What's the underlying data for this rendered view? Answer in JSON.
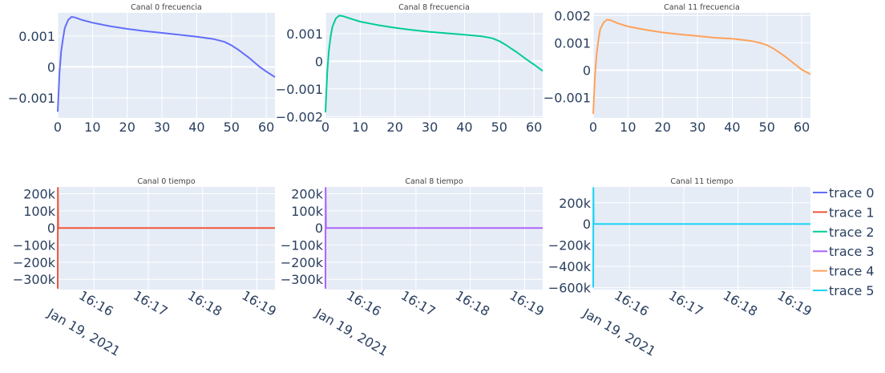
{
  "colors": {
    "plot_bg": "#e5ecf6",
    "grid": "#ffffff",
    "text": "#2a3f5f"
  },
  "chart_data": [
    {
      "type": "line",
      "title": "Canal 0 frecuencia",
      "xlim": [
        0,
        62.5
      ],
      "ylim": [
        -0.00165,
        0.00175
      ],
      "x_ticks": [
        0,
        10,
        20,
        30,
        40,
        50,
        60
      ],
      "x_tick_labels": [
        "0",
        "10",
        "20",
        "30",
        "40",
        "50",
        "60"
      ],
      "y_ticks": [
        0.001,
        0,
        -0.001
      ],
      "y_tick_labels": [
        "0.001",
        "0",
        "−0.001"
      ],
      "series": [
        {
          "color": "#636efa",
          "x": [
            0,
            0.5,
            1,
            1.5,
            2,
            3,
            4,
            5,
            7,
            10,
            15,
            20,
            25,
            30,
            35,
            40,
            45,
            48,
            50,
            52,
            55,
            58,
            60,
            62.5
          ],
          "y": [
            -0.00145,
            -0.0002,
            0.0005,
            0.0009,
            0.00125,
            0.00152,
            0.00162,
            0.0016,
            0.00152,
            0.00143,
            0.00132,
            0.00123,
            0.00116,
            0.0011,
            0.00104,
            0.00098,
            0.0009,
            0.00081,
            0.0007,
            0.00055,
            0.0003,
            1e-05,
            -0.00015,
            -0.00033
          ]
        }
      ]
    },
    {
      "type": "line",
      "title": "Canal 8 frecuencia",
      "xlim": [
        0,
        62.5
      ],
      "ylim": [
        -0.00205,
        0.00175
      ],
      "x_ticks": [
        0,
        10,
        20,
        30,
        40,
        50,
        60
      ],
      "x_tick_labels": [
        "0",
        "10",
        "20",
        "30",
        "40",
        "50",
        "60"
      ],
      "y_ticks": [
        0.001,
        0,
        -0.001,
        -0.002
      ],
      "y_tick_labels": [
        "0.001",
        "0",
        "−0.001",
        "−0.002"
      ],
      "series": [
        {
          "color": "#00cc96",
          "x": [
            0,
            0.5,
            1,
            1.5,
            2,
            3,
            4,
            5,
            7,
            10,
            15,
            20,
            25,
            30,
            35,
            40,
            45,
            48,
            50,
            52,
            55,
            58,
            60,
            62.5
          ],
          "y": [
            -0.00185,
            -0.0004,
            0.0004,
            0.0009,
            0.00125,
            0.00155,
            0.00165,
            0.00163,
            0.00155,
            0.00143,
            0.00131,
            0.00121,
            0.00113,
            0.00106,
            0.00101,
            0.00096,
            0.0009,
            0.00083,
            0.00073,
            0.00058,
            0.00033,
            5e-05,
            -0.00012,
            -0.00035
          ]
        }
      ]
    },
    {
      "type": "line",
      "title": "Canal 11 frecuencia",
      "xlim": [
        0,
        62.5
      ],
      "ylim": [
        -0.00175,
        0.0021
      ],
      "x_ticks": [
        0,
        10,
        20,
        30,
        40,
        50,
        60
      ],
      "x_tick_labels": [
        "0",
        "10",
        "20",
        "30",
        "40",
        "50",
        "60"
      ],
      "y_ticks": [
        0.002,
        0.001,
        0,
        -0.001
      ],
      "y_tick_labels": [
        "0.002",
        "0.001",
        "0",
        "−0.001"
      ],
      "series": [
        {
          "color": "#ffa15a",
          "x": [
            0,
            0.5,
            1,
            1.5,
            2,
            3,
            4,
            5,
            7,
            10,
            15,
            20,
            25,
            30,
            35,
            40,
            45,
            48,
            50,
            52,
            55,
            58,
            60,
            62.5
          ],
          "y": [
            -0.0016,
            -0.0002,
            0.0006,
            0.0011,
            0.0015,
            0.00175,
            0.00185,
            0.00183,
            0.00172,
            0.0016,
            0.00148,
            0.00138,
            0.00131,
            0.00125,
            0.00119,
            0.00115,
            0.00108,
            0.001,
            0.00092,
            0.00078,
            0.00052,
            0.00022,
            2e-05,
            -0.00015
          ]
        }
      ]
    },
    {
      "type": "line",
      "title": "Canal 0 tiempo",
      "xlim": [
        0,
        240
      ],
      "ylim": [
        -360000,
        240000
      ],
      "x_ticks": [
        40,
        100,
        160,
        220
      ],
      "x_tick_labels": [
        "16:16",
        "16:17",
        "16:18",
        "16:19"
      ],
      "x_date_label": "Jan 19, 2021",
      "y_ticks": [
        200000,
        100000,
        0,
        -100000,
        -200000,
        -300000
      ],
      "y_tick_labels": [
        "200k",
        "100k",
        "0",
        "−100k",
        "−200k",
        "−300k"
      ],
      "series": [
        {
          "color": "#ef553b",
          "x": [
            0,
            0.2,
            0.5,
            2,
            60,
            120,
            180,
            240
          ],
          "y": [
            -355000,
            235000,
            0,
            0,
            0,
            0,
            0,
            0
          ]
        }
      ]
    },
    {
      "type": "line",
      "title": "Canal 8 tiempo",
      "xlim": [
        0,
        240
      ],
      "ylim": [
        -360000,
        240000
      ],
      "x_ticks": [
        40,
        100,
        160,
        220
      ],
      "x_tick_labels": [
        "16:16",
        "16:17",
        "16:18",
        "16:19"
      ],
      "x_date_label": "Jan 19, 2021",
      "y_ticks": [
        200000,
        100000,
        0,
        -100000,
        -200000,
        -300000
      ],
      "y_tick_labels": [
        "200k",
        "100k",
        "0",
        "−100k",
        "−200k",
        "−300k"
      ],
      "series": [
        {
          "color": "#ab63fa",
          "x": [
            0,
            0.2,
            0.5,
            2,
            60,
            120,
            180,
            240
          ],
          "y": [
            -355000,
            235000,
            0,
            0,
            0,
            0,
            0,
            0
          ]
        }
      ]
    },
    {
      "type": "line",
      "title": "Canal 11 tiempo",
      "xlim": [
        0,
        240
      ],
      "ylim": [
        -620000,
        350000
      ],
      "x_ticks": [
        40,
        100,
        160,
        220
      ],
      "x_tick_labels": [
        "16:16",
        "16:17",
        "16:18",
        "16:19"
      ],
      "x_date_label": "Jan 19, 2021",
      "y_ticks": [
        200000,
        0,
        -200000,
        -400000,
        -600000
      ],
      "y_tick_labels": [
        "200k",
        "0",
        "−200k",
        "−400k",
        "−600k"
      ],
      "series": [
        {
          "color": "#19d3f3",
          "x": [
            0,
            0.2,
            0.5,
            2,
            60,
            120,
            180,
            240
          ],
          "y": [
            -600000,
            340000,
            0,
            0,
            0,
            0,
            0,
            0
          ]
        }
      ]
    }
  ],
  "legend": {
    "position": "right",
    "items": [
      {
        "label": "trace 0",
        "color": "#636efa"
      },
      {
        "label": "trace 1",
        "color": "#ef553b"
      },
      {
        "label": "trace 2",
        "color": "#00cc96"
      },
      {
        "label": "trace 3",
        "color": "#ab63fa"
      },
      {
        "label": "trace 4",
        "color": "#ffa15a"
      },
      {
        "label": "trace 5",
        "color": "#19d3f3"
      }
    ]
  }
}
